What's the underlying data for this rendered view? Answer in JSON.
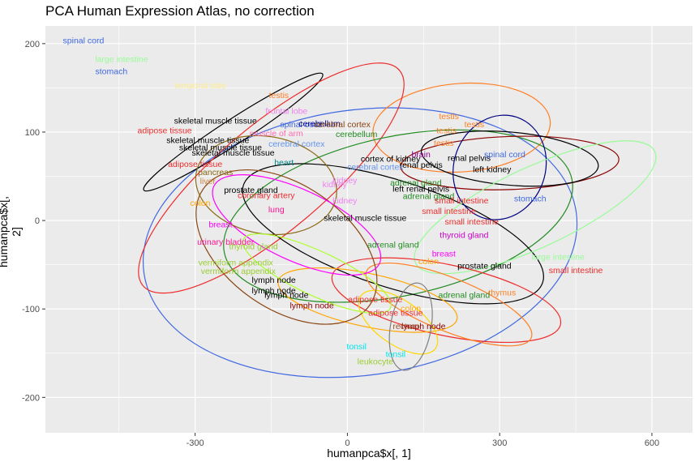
{
  "chart_data": {
    "type": "scatter",
    "title": "PCA Human Expression Atlas, no correction",
    "xlabel": "humanpca$x[, 1]",
    "ylabel": "humanpca$x[, 2]",
    "xlim": [
      -595,
      680
    ],
    "ylim": [
      -240,
      220
    ],
    "x_ticks": [
      -300,
      0,
      300,
      600
    ],
    "y_ticks": [
      200,
      100,
      0,
      -100,
      -200
    ],
    "x_tick_labels": [
      "-300",
      "0",
      "300",
      "600"
    ],
    "y_tick_labels": [
      "200",
      "100",
      "0",
      "-100",
      "-200"
    ],
    "grid": true,
    "background": "#ebebeb",
    "points": [
      {
        "label": "spinal cord",
        "x": -520,
        "y": 203,
        "color": "#4169e1"
      },
      {
        "label": "large intestine",
        "x": -445,
        "y": 182,
        "color": "#98fb98"
      },
      {
        "label": "stomach",
        "x": -465,
        "y": 168,
        "color": "#4169e1"
      },
      {
        "label": "temporal lobe",
        "x": -290,
        "y": 152,
        "color": "#ffec8b"
      },
      {
        "label": "testis",
        "x": -135,
        "y": 141,
        "color": "#ff7f24"
      },
      {
        "label": "frontal lobe",
        "x": -120,
        "y": 123,
        "color": "#ee82ee"
      },
      {
        "label": "skeletal muscle tissue",
        "x": -260,
        "y": 112,
        "color": "#000000"
      },
      {
        "label": "spinal cord",
        "x": -92,
        "y": 108,
        "color": "#4169e1"
      },
      {
        "label": "cerebellum",
        "x": -55,
        "y": 109,
        "color": "#00008b"
      },
      {
        "label": "cerebral cortex",
        "x": -10,
        "y": 108,
        "color": "#8b4513"
      },
      {
        "label": "adipose tissue",
        "x": -360,
        "y": 101,
        "color": "#ee2c2c"
      },
      {
        "label": "muscle of arm",
        "x": -140,
        "y": 98,
        "color": "#ff6eb4"
      },
      {
        "label": "cerebellum",
        "x": 18,
        "y": 97,
        "color": "#228b22"
      },
      {
        "label": "skeletal muscle tissue",
        "x": -275,
        "y": 90,
        "color": "#000000"
      },
      {
        "label": "cerebral cortex",
        "x": -100,
        "y": 86,
        "color": "#6495ed"
      },
      {
        "label": "skeletal muscle tissue",
        "x": -250,
        "y": 82,
        "color": "#000000"
      },
      {
        "label": "skeletal muscle tissue",
        "x": -225,
        "y": 76,
        "color": "#000000"
      },
      {
        "label": "adipose tissue",
        "x": -300,
        "y": 63,
        "color": "#ee2c2c"
      },
      {
        "label": "heart",
        "x": -125,
        "y": 65,
        "color": "#00868b"
      },
      {
        "label": "pancreas",
        "x": -260,
        "y": 54,
        "color": "#8b6914"
      },
      {
        "label": "liver",
        "x": -275,
        "y": 44,
        "color": "#cd853f"
      },
      {
        "label": "prostate gland",
        "x": -190,
        "y": 34,
        "color": "#000000"
      },
      {
        "label": "coronary artery",
        "x": -160,
        "y": 28,
        "color": "#ee2c2c"
      },
      {
        "label": "kidney",
        "x": -5,
        "y": 45,
        "color": "#ee82ee"
      },
      {
        "label": "kidney",
        "x": -25,
        "y": 40,
        "color": "#ee82ee"
      },
      {
        "label": "kidney",
        "x": -5,
        "y": 22,
        "color": "#ee82ee"
      },
      {
        "label": "colon",
        "x": -290,
        "y": 19,
        "color": "#ffa500"
      },
      {
        "label": "lung",
        "x": -140,
        "y": 12,
        "color": "#ff1493"
      },
      {
        "label": "skeletal muscle tissue",
        "x": 35,
        "y": 2,
        "color": "#000000"
      },
      {
        "label": "breast",
        "x": -250,
        "y": -5,
        "color": "#ff00ff"
      },
      {
        "label": "urinary bladder",
        "x": -240,
        "y": -25,
        "color": "#ff1493"
      },
      {
        "label": "thyroid gland",
        "x": -185,
        "y": -30,
        "color": "#9acd32"
      },
      {
        "label": "vermiform appendix",
        "x": -220,
        "y": -48,
        "color": "#9acd32"
      },
      {
        "label": "vermiform appendix",
        "x": -215,
        "y": -58,
        "color": "#9acd32"
      },
      {
        "label": "lymph node",
        "x": -145,
        "y": -68,
        "color": "#000000"
      },
      {
        "label": "lymph node",
        "x": -145,
        "y": -80,
        "color": "#000000"
      },
      {
        "label": "lymph node",
        "x": -120,
        "y": -85,
        "color": "#000000"
      },
      {
        "label": "lymph node",
        "x": -70,
        "y": -97,
        "color": "#8b0000"
      },
      {
        "label": "adipose tissue",
        "x": 55,
        "y": -90,
        "color": "#ee2c2c"
      },
      {
        "label": "adipose tissue",
        "x": 95,
        "y": -105,
        "color": "#ee2c2c"
      },
      {
        "label": "colon",
        "x": 125,
        "y": -100,
        "color": "#ffa500"
      },
      {
        "label": "lymph node",
        "x": 150,
        "y": -120,
        "color": "#8b0000"
      },
      {
        "label": "rectum",
        "x": 115,
        "y": -120,
        "color": "#a0522d"
      },
      {
        "label": "tonsil",
        "x": 18,
        "y": -143,
        "color": "#00e5ee"
      },
      {
        "label": "tonsil",
        "x": 95,
        "y": -152,
        "color": "#00e5ee"
      },
      {
        "label": "leukocyte",
        "x": 55,
        "y": -160,
        "color": "#9acd32"
      },
      {
        "label": "testis",
        "x": 200,
        "y": 117,
        "color": "#ff7f24"
      },
      {
        "label": "testis",
        "x": 250,
        "y": 108,
        "color": "#ff7f24"
      },
      {
        "label": "testis",
        "x": 195,
        "y": 101,
        "color": "#ff7f24"
      },
      {
        "label": "testis",
        "x": 190,
        "y": 87,
        "color": "#ff7f24"
      },
      {
        "label": "brain",
        "x": 145,
        "y": 74,
        "color": "#8b008b"
      },
      {
        "label": "cortex of kidney",
        "x": 85,
        "y": 69,
        "color": "#000000"
      },
      {
        "label": "renal pelvis",
        "x": 145,
        "y": 62,
        "color": "#000000"
      },
      {
        "label": "renal pelvis",
        "x": 240,
        "y": 70,
        "color": "#000000"
      },
      {
        "label": "spinal cord",
        "x": 310,
        "y": 74,
        "color": "#4169e1"
      },
      {
        "label": "left kidney",
        "x": 285,
        "y": 57,
        "color": "#000000"
      },
      {
        "label": "cerebral cortex",
        "x": 55,
        "y": 60,
        "color": "#6495ed"
      },
      {
        "label": "adrenal gland",
        "x": 135,
        "y": 42,
        "color": "#228b22"
      },
      {
        "label": "left renal pelvis",
        "x": 145,
        "y": 35,
        "color": "#000000"
      },
      {
        "label": "adrenal gland",
        "x": 160,
        "y": 27,
        "color": "#228b22"
      },
      {
        "label": "small intestine",
        "x": 225,
        "y": 22,
        "color": "#ee2c2c"
      },
      {
        "label": "stomach",
        "x": 360,
        "y": 24,
        "color": "#4169e1"
      },
      {
        "label": "small intestine",
        "x": 200,
        "y": 10,
        "color": "#ee2c2c"
      },
      {
        "label": "small intestine",
        "x": 245,
        "y": -2,
        "color": "#ee2c2c"
      },
      {
        "label": "thyroid gland",
        "x": 230,
        "y": -17,
        "color": "#cd00cd"
      },
      {
        "label": "adrenal gland",
        "x": 90,
        "y": -28,
        "color": "#228b22"
      },
      {
        "label": "breast",
        "x": 190,
        "y": -38,
        "color": "#ff00ff"
      },
      {
        "label": "colon",
        "x": 160,
        "y": -47,
        "color": "#ffa500"
      },
      {
        "label": "prostate gland",
        "x": 270,
        "y": -52,
        "color": "#000000"
      },
      {
        "label": "large intestine",
        "x": 415,
        "y": -42,
        "color": "#98fb98"
      },
      {
        "label": "small intestine",
        "x": 450,
        "y": -57,
        "color": "#ee2c2c"
      },
      {
        "label": "adrenal gland",
        "x": 230,
        "y": -85,
        "color": "#228b22"
      },
      {
        "label": "thymus",
        "x": 305,
        "y": -82,
        "color": "#ff7f24"
      }
    ],
    "ellipses": [
      {
        "name": "stomach",
        "cx": 25,
        "cy": -25,
        "rx": 430,
        "ry": 150,
        "rot": -8,
        "color": "#4169e1"
      },
      {
        "name": "testis",
        "cx": 225,
        "cy": 105,
        "rx": 175,
        "ry": 50,
        "rot": -4,
        "color": "#ff7f24"
      },
      {
        "name": "skeletal muscle tissue",
        "cx": -225,
        "cy": 100,
        "rx": 210,
        "ry": 14,
        "rot": -33,
        "color": "#000000"
      },
      {
        "name": "adipose tissue",
        "cx": -150,
        "cy": 48,
        "rx": 330,
        "ry": 60,
        "rot": -40,
        "color": "#ee2c2c"
      },
      {
        "name": "adrenal gland",
        "cx": 100,
        "cy": 5,
        "rx": 350,
        "ry": 90,
        "rot": -12,
        "color": "#228b22"
      },
      {
        "name": "prostate gland",
        "cx": 90,
        "cy": -15,
        "rx": 310,
        "ry": 60,
        "rot": 18,
        "color": "#000000"
      },
      {
        "name": "renal pelvis",
        "cx": 320,
        "cy": 65,
        "rx": 215,
        "ry": 30,
        "rot": -2,
        "color": "#8b0000"
      },
      {
        "name": "kidney",
        "cx": 320,
        "cy": 70,
        "rx": 175,
        "ry": 30,
        "rot": 5,
        "color": "#000000"
      },
      {
        "name": "cortex of kidney",
        "cx": 300,
        "cy": 60,
        "rx": 90,
        "ry": 60,
        "rot": 20,
        "color": "#000080"
      },
      {
        "name": "large intestine",
        "cx": 370,
        "cy": 15,
        "rx": 260,
        "ry": 45,
        "rot": -25,
        "color": "#98fb98"
      },
      {
        "name": "small intestine",
        "cx": 195,
        "cy": -90,
        "rx": 230,
        "ry": 40,
        "rot": 12,
        "color": "#ee2c2c"
      },
      {
        "name": "thymus",
        "cx": 200,
        "cy": -95,
        "rx": 175,
        "ry": 30,
        "rot": 22,
        "color": "#ff7f24"
      },
      {
        "name": "lymph node",
        "cx": 40,
        "cy": -90,
        "rx": 180,
        "ry": 30,
        "rot": 12,
        "color": "#ffa500"
      },
      {
        "name": "tonsil",
        "cx": 100,
        "cy": -115,
        "rx": 90,
        "ry": 25,
        "rot": 35,
        "color": "#ffd700"
      },
      {
        "name": "colon",
        "cx": -120,
        "cy": -30,
        "rx": 200,
        "ry": 70,
        "rot": 35,
        "color": "#8b4513"
      },
      {
        "name": "breast",
        "cx": -100,
        "cy": -5,
        "rx": 180,
        "ry": 40,
        "rot": 25,
        "color": "#ff00ff"
      },
      {
        "name": "rectum",
        "cx": 125,
        "cy": -120,
        "rx": 40,
        "ry": 50,
        "rot": 10,
        "color": "#808080"
      },
      {
        "name": "pancreas",
        "cx": -160,
        "cy": 40,
        "rx": 140,
        "ry": 55,
        "rot": 10,
        "color": "#8b6914"
      },
      {
        "name": "vermiform appendix",
        "cx": -60,
        "cy": -60,
        "rx": 160,
        "ry": 25,
        "rot": 25,
        "color": "#adff2f"
      }
    ]
  }
}
